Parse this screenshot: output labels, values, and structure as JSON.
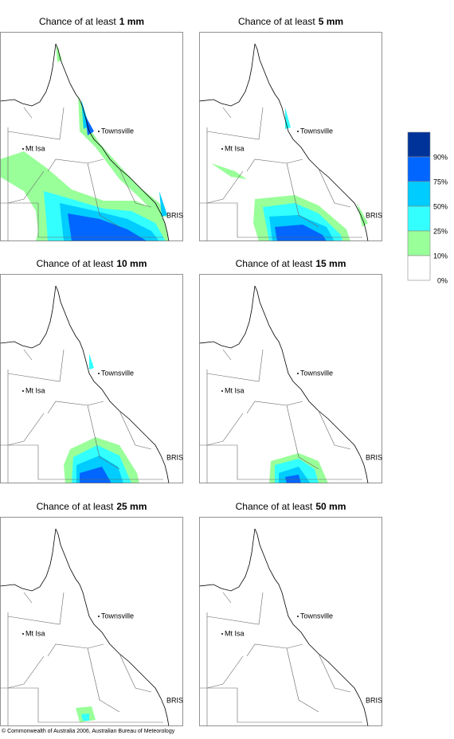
{
  "panels": [
    {
      "title": "Chance of at least",
      "amount": "1 mm"
    },
    {
      "title": "Chance of at least",
      "amount": "5 mm"
    },
    {
      "title": "Chance of at least",
      "amount": "10 mm"
    },
    {
      "title": "Chance of at least",
      "amount": "15 mm"
    },
    {
      "title": "Chance of at least",
      "amount": "25 mm"
    },
    {
      "title": "Chance of at least",
      "amount": "50 mm"
    }
  ],
  "places": {
    "townsville": "Townsville",
    "mt_isa": "Mt Isa",
    "bris": "BRIS"
  },
  "legend": {
    "labels": [
      "90%",
      "75%",
      "50%",
      "25%",
      "10%",
      "0%"
    ],
    "colors": [
      "#003399",
      "#0066ff",
      "#00ccff",
      "#33ffff",
      "#99ff99",
      "#ffffff"
    ]
  },
  "copyright": "© Commonwealth of Australia 2006, Australian Bureau of Meteorology"
}
